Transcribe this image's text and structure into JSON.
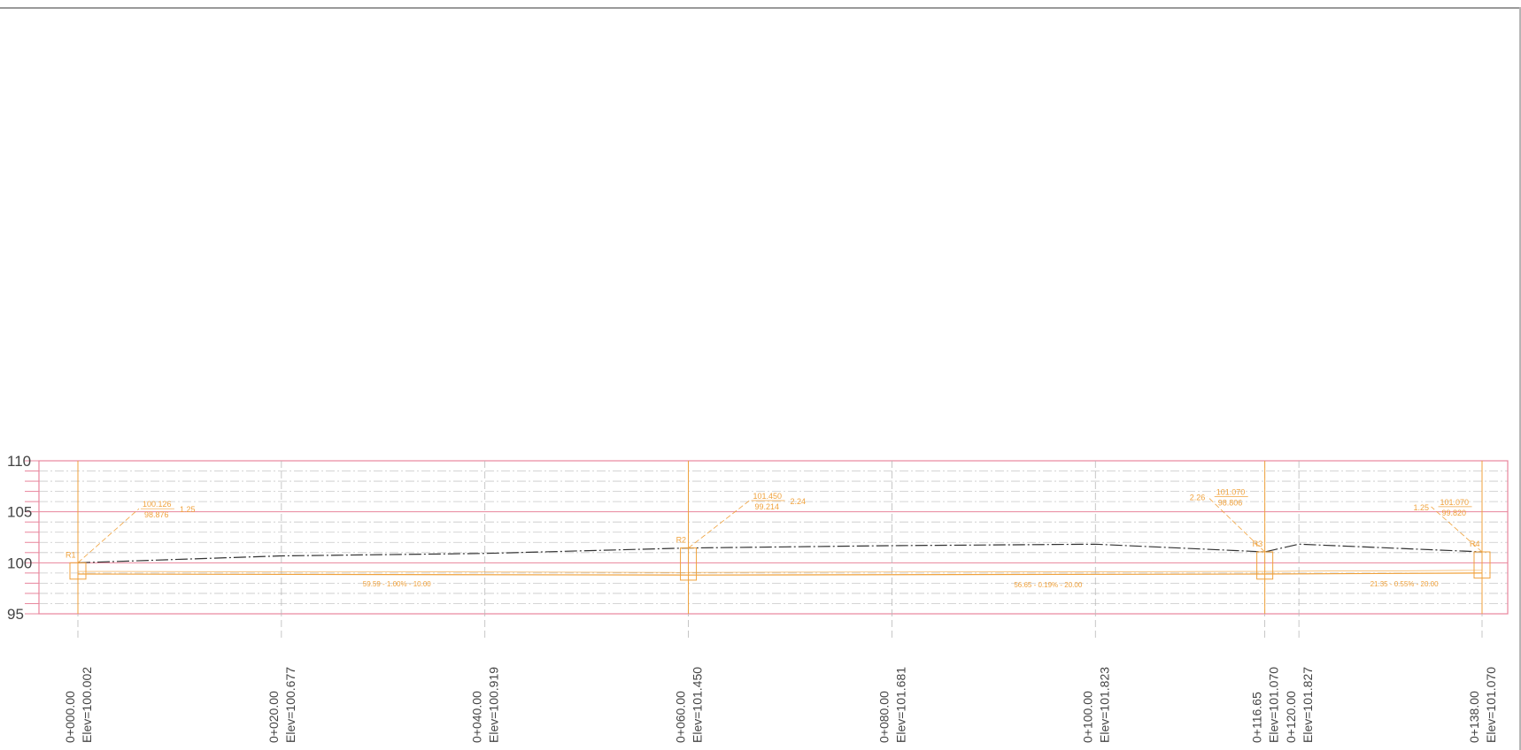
{
  "profile": {
    "y_axis": {
      "ticks": [
        "110",
        "105",
        "100",
        "95"
      ],
      "range": [
        95,
        110
      ],
      "minor_step": 1
    },
    "x_range_station_m": [
      0,
      138
    ],
    "ground_profile": [
      {
        "station": 0,
        "elev": 100.002
      },
      {
        "station": 20,
        "elev": 100.677
      },
      {
        "station": 40,
        "elev": 100.919
      },
      {
        "station": 60,
        "elev": 101.45
      },
      {
        "station": 80,
        "elev": 101.681
      },
      {
        "station": 100,
        "elev": 101.823
      },
      {
        "station": 116.65,
        "elev": 101.07
      },
      {
        "station": 120,
        "elev": 101.827
      },
      {
        "station": 138,
        "elev": 101.07
      }
    ],
    "stations": [
      {
        "station": 0,
        "label": "0+000.00",
        "elev_label": "Elev=100.002"
      },
      {
        "station": 20,
        "label": "0+020.00",
        "elev_label": "Elev=100.677"
      },
      {
        "station": 40,
        "label": "0+040.00",
        "elev_label": "Elev=100.919"
      },
      {
        "station": 60,
        "label": "0+060.00",
        "elev_label": "Elev=101.450"
      },
      {
        "station": 80,
        "label": "0+080.00",
        "elev_label": "Elev=101.681"
      },
      {
        "station": 100,
        "label": "0+100.00",
        "elev_label": "Elev=101.823"
      },
      {
        "station": 116.65,
        "label": "0+116.65",
        "elev_label": "Elev=101.070"
      },
      {
        "station": 120,
        "label": "0+120.00",
        "elev_label": "Elev=101.827"
      },
      {
        "station": 138,
        "label": "0+138.00",
        "elev_label": "Elev=101.070"
      }
    ],
    "structures": [
      {
        "name": "R1",
        "station": 0,
        "ground": 100.002,
        "invert": 98.9
      },
      {
        "name": "R2",
        "station": 60,
        "ground": 101.45,
        "invert": 98.8
      },
      {
        "name": "R3",
        "station": 116.65,
        "ground": 101.07,
        "invert": 98.9
      },
      {
        "name": "R4",
        "station": 138,
        "ground": 101.07,
        "invert": 99.0
      }
    ],
    "pipe_invert": [
      {
        "station": 0,
        "elev": 98.9
      },
      {
        "station": 60,
        "elev": 98.8
      },
      {
        "station": 116.65,
        "elev": 98.9
      },
      {
        "station": 138,
        "elev": 99.0
      }
    ],
    "structure_callouts": [
      {
        "top": "100.126",
        "bottom": "98.876",
        "side": "1.25",
        "peak_station": 6,
        "peak_elev": 105.3
      },
      {
        "top": "101.450",
        "bottom": "99.214",
        "side": "2.24",
        "peak_station": 66,
        "peak_elev": 106.1
      },
      {
        "top": "101.070",
        "bottom": "98.806",
        "side": "2.26",
        "peak_station": 111,
        "peak_elev": 106.5
      },
      {
        "top": "101.070",
        "bottom": "99.820",
        "side": "1.25",
        "peak_station": 133,
        "peak_elev": 105.5
      }
    ],
    "pipe_labels": [
      {
        "text": "59.59 - 1.00% - 10.00",
        "station": 28,
        "elev": 97.7
      },
      {
        "text": "56.65 - 0.19% - 20.00",
        "station": 92,
        "elev": 97.6
      },
      {
        "text": "21.35 - 0.55% - 20.00",
        "station": 127,
        "elev": 97.7
      }
    ],
    "colors": {
      "frame": "#e8859c",
      "grid": "#c8c8c8",
      "ground": "#333333",
      "pipe": "#f0a23c",
      "station_line": "#b9b9b9",
      "axis_text": "#444444"
    }
  }
}
